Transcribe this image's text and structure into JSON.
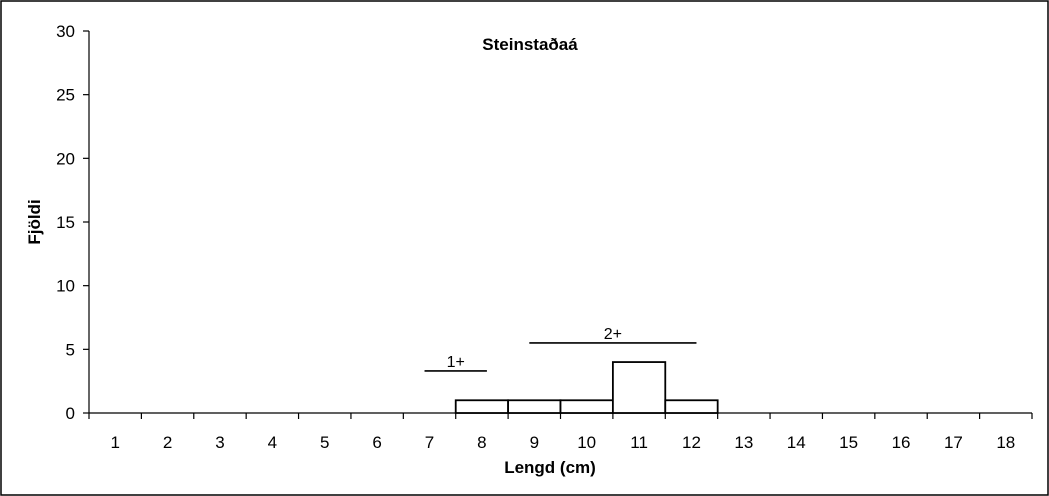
{
  "chart_data": {
    "type": "bar",
    "title": "Steinstaðaá",
    "xlabel": "Lengd (cm)",
    "ylabel": "Fjöldi",
    "categories": [
      "1",
      "2",
      "3",
      "4",
      "5",
      "6",
      "7",
      "8",
      "9",
      "10",
      "11",
      "12",
      "13",
      "14",
      "15",
      "16",
      "17",
      "18"
    ],
    "values": [
      0,
      0,
      0,
      0,
      0,
      0,
      0,
      1,
      1,
      1,
      4,
      1,
      0,
      0,
      0,
      0,
      0,
      0
    ],
    "ylim": [
      0,
      30
    ],
    "yticks": [
      0,
      5,
      10,
      15,
      20,
      25,
      30
    ],
    "grid": false,
    "legend": "none",
    "annotations": [
      {
        "label": "1+",
        "from_category": "7",
        "to_category": "8",
        "y_value": 3.3
      },
      {
        "label": "2+",
        "from_category": "9",
        "to_category": "12",
        "y_value": 5.5
      }
    ],
    "colors": {
      "bar_fill": "#ffffff",
      "bar_stroke": "#000000",
      "axis": "#000000"
    }
  }
}
